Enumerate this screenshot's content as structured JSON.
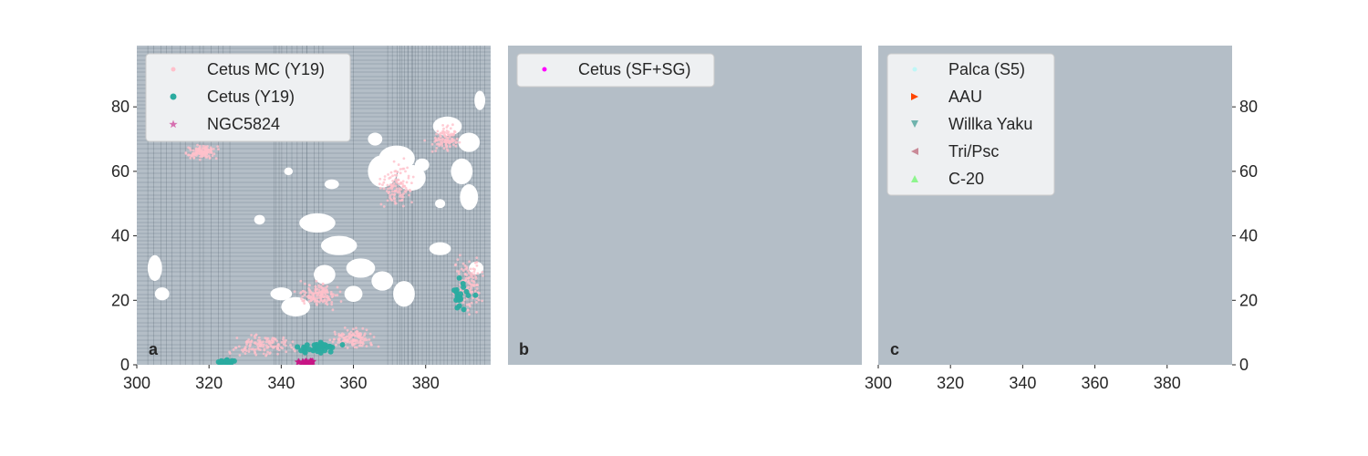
{
  "chart_data": [
    {
      "type": "scatter",
      "panel_label": "a",
      "xlim": [
        300,
        398
      ],
      "ylim": [
        0,
        99
      ],
      "xticks": [
        300,
        320,
        340,
        360,
        380
      ],
      "yticks": [
        0,
        20,
        40,
        60,
        80
      ],
      "y_axis_side": "left",
      "grid": true,
      "legend_position": "top-left",
      "background": "#b4bec7",
      "series": [
        {
          "name": "Cetus MC (Y19)",
          "marker": "dot",
          "color": "#ffc0cb"
        },
        {
          "name": "Cetus (Y19)",
          "marker": "circle",
          "color": "#2aaba0"
        },
        {
          "name": "NGC5824",
          "marker": "star",
          "color": "#c71585"
        }
      ]
    },
    {
      "type": "scatter",
      "panel_label": "b",
      "xlim": [
        300,
        398
      ],
      "ylim": [
        0,
        99
      ],
      "xticks": [
        300,
        320,
        340,
        360,
        380
      ],
      "yticks": [
        0,
        20,
        40,
        60,
        80
      ],
      "y_axis_side": "none",
      "grid": true,
      "legend_position": "top-left",
      "background": "#b4bec7",
      "series": [
        {
          "name": "Cetus (SF+SG)",
          "marker": "dot",
          "color": "#ff00ff"
        }
      ]
    },
    {
      "type": "scatter",
      "panel_label": "c",
      "xlim": [
        300,
        398
      ],
      "ylim": [
        0,
        99
      ],
      "xticks": [
        300,
        320,
        340,
        360,
        380
      ],
      "yticks": [
        0,
        20,
        40,
        60,
        80
      ],
      "y_axis_side": "right",
      "grid": true,
      "legend_position": "top-left",
      "background": "#b4bec7",
      "series": [
        {
          "name": "Palca (S5)",
          "marker": "dot",
          "color": "#00e5ee"
        },
        {
          "name": "AAU",
          "marker": "triangle-right",
          "color": "#ff4500"
        },
        {
          "name": "Willka Yaku",
          "marker": "triangle-down",
          "color": "#008080"
        },
        {
          "name": "Tri/Psc",
          "marker": "triangle-left",
          "color": "#c0203c"
        },
        {
          "name": "C-20",
          "marker": "triangle-up",
          "color": "#00ee00"
        }
      ]
    }
  ],
  "colors": {
    "plot_background": "#b4bec7",
    "footprint": "#ffffff",
    "grid_line": "#4f5d6b",
    "text": "#262626"
  }
}
